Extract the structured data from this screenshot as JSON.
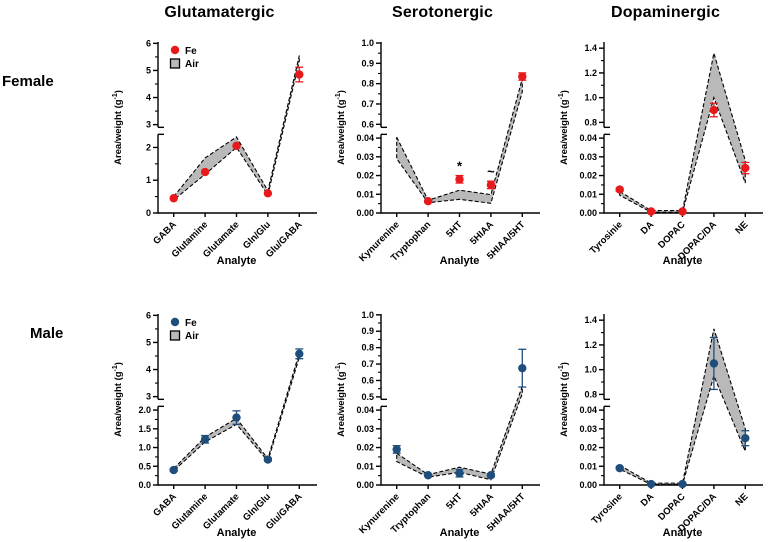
{
  "figure": {
    "column_titles": [
      "Glutamatergic",
      "Serotonergic",
      "Dopaminergic"
    ],
    "row_labels": [
      "Female",
      "Male"
    ],
    "ylabel_base": "Area/weight (g",
    "ylabel_sup": "-1",
    "ylabel_close": ")",
    "xlabel": "Analyte",
    "legend": {
      "fe": "Fe",
      "air": "Air"
    },
    "colors": {
      "female_marker": "#e8191b",
      "male_marker": "#1f4e7c",
      "air_fill": "#b9b9b9",
      "axis": "#000000",
      "background": "#ffffff"
    }
  },
  "chart_data": [
    {
      "id": "female-glutamatergic",
      "row": "Female",
      "column": "Glutamatergic",
      "type": "line-band",
      "marker_color": "female_marker",
      "show_legend": true,
      "categories": [
        "GABA",
        "Glutamine",
        "Glutamate",
        "Gln/Glu",
        "Glu/GABA"
      ],
      "fe": {
        "values": [
          0.45,
          1.25,
          2.05,
          0.6,
          4.85
        ],
        "errors": [
          0,
          0,
          0,
          0,
          0.27
        ]
      },
      "air": {
        "lo": [
          0.4,
          1.18,
          2.0,
          0.55,
          5.35
        ],
        "hi": [
          0.5,
          1.68,
          2.32,
          0.68,
          5.55
        ]
      },
      "annotations": [
        "",
        "",
        "",
        "",
        ""
      ],
      "axis": {
        "lower": {
          "min": 0,
          "max": 2.4,
          "ticks": [
            0,
            1,
            2
          ],
          "fmt": 0
        },
        "upper": {
          "min": 2.9,
          "max": 6.05,
          "ticks": [
            3,
            4,
            5,
            6
          ],
          "fmt": 0
        },
        "lower_frac": 0.46
      }
    },
    {
      "id": "female-serotonergic",
      "row": "Female",
      "column": "Serotonergic",
      "type": "line-band",
      "marker_color": "female_marker",
      "show_legend": false,
      "categories": [
        "Kynurenine",
        "Tryptophan",
        "5HT",
        "5HIAA",
        "5HIAA/5HT"
      ],
      "fe": {
        "values": [
          null,
          0.0063,
          0.018,
          0.015,
          0.835
        ],
        "errors": [
          0,
          0.0005,
          0.002,
          0.002,
          0.018
        ]
      },
      "air": {
        "lo": [
          0.029,
          0.0055,
          0.0073,
          0.0052,
          0.76
        ],
        "hi": [
          0.0405,
          0.0068,
          0.0122,
          0.0098,
          0.825
        ]
      },
      "annotations": [
        "",
        "",
        "*",
        "~",
        ""
      ],
      "axis": {
        "lower": {
          "min": 0,
          "max": 0.042,
          "ticks": [
            0,
            0.01,
            0.02,
            0.03,
            0.04
          ],
          "fmt": 2
        },
        "upper": {
          "min": 0.585,
          "max": 1.005,
          "ticks": [
            0.6,
            0.7,
            0.8,
            0.9,
            1.0
          ],
          "fmt": 1
        },
        "lower_frac": 0.46
      }
    },
    {
      "id": "female-dopaminergic",
      "row": "Female",
      "column": "Dopaminergic",
      "type": "line-band",
      "marker_color": "female_marker",
      "show_legend": false,
      "categories": [
        "Tyrosinie",
        "DA",
        "DOPAC",
        "DOPAC/DA",
        "NE"
      ],
      "fe": {
        "values": [
          0.0125,
          0.0008,
          0.0008,
          0.9,
          0.024
        ],
        "errors": [
          0.0008,
          0,
          0,
          0.055,
          0.003
        ]
      },
      "air": {
        "lo": [
          0.0095,
          0.0004,
          0.0004,
          1.0,
          0.016
        ],
        "hi": [
          0.0115,
          0.0013,
          0.0013,
          1.36,
          0.028
        ]
      },
      "annotations": [
        "",
        "",
        "",
        "",
        ""
      ],
      "axis": {
        "lower": {
          "min": 0,
          "max": 0.042,
          "ticks": [
            0,
            0.01,
            0.02,
            0.03,
            0.04
          ],
          "fmt": 2
        },
        "upper": {
          "min": 0.76,
          "max": 1.45,
          "ticks": [
            0.8,
            1.0,
            1.2,
            1.4
          ],
          "fmt": 1
        },
        "lower_frac": 0.46
      }
    },
    {
      "id": "male-glutamatergic",
      "row": "Male",
      "column": "Glutamatergic",
      "type": "line-band",
      "marker_color": "male_marker",
      "show_legend": true,
      "categories": [
        "GABA",
        "Glutamine",
        "Glutamate",
        "Gln/Glu",
        "Glu/GABA"
      ],
      "fe": {
        "values": [
          0.4,
          1.22,
          1.8,
          0.68,
          4.58
        ],
        "errors": [
          0.03,
          0.1,
          0.18,
          0.04,
          0.18
        ]
      },
      "air": {
        "lo": [
          0.38,
          1.15,
          1.62,
          0.64,
          4.45
        ],
        "hi": [
          0.44,
          1.28,
          1.78,
          0.7,
          4.62
        ]
      },
      "annotations": [
        "",
        "",
        "",
        "",
        ""
      ],
      "axis": {
        "lower": {
          "min": 0,
          "max": 2.1,
          "ticks": [
            0,
            0.5,
            1.0,
            1.5,
            2.0
          ],
          "fmt": 1
        },
        "upper": {
          "min": 2.9,
          "max": 6.05,
          "ticks": [
            3,
            4,
            5,
            6
          ],
          "fmt": 0
        },
        "lower_frac": 0.46
      }
    },
    {
      "id": "male-serotonergic",
      "row": "Male",
      "column": "Serotonergic",
      "type": "line-band",
      "marker_color": "male_marker",
      "show_legend": false,
      "categories": [
        "Kynurenine",
        "Tryptophan",
        "5HT",
        "5HIAA",
        "5HIAA/5HT"
      ],
      "fe": {
        "values": [
          0.019,
          0.0052,
          0.0063,
          0.0052,
          0.675
        ],
        "errors": [
          0.002,
          0.0005,
          0.002,
          0.0008,
          0.115
        ]
      },
      "air": {
        "lo": [
          0.0125,
          0.0042,
          0.0068,
          0.0028,
          0.52
        ],
        "hi": [
          0.017,
          0.0055,
          0.0095,
          0.0058,
          0.565
        ]
      },
      "annotations": [
        "",
        "",
        "",
        "",
        ""
      ],
      "axis": {
        "lower": {
          "min": 0,
          "max": 0.042,
          "ticks": [
            0,
            0.01,
            0.02,
            0.03,
            0.04
          ],
          "fmt": 2
        },
        "upper": {
          "min": 0.485,
          "max": 1.005,
          "ticks": [
            0.5,
            0.6,
            0.7,
            0.8,
            0.9,
            1.0
          ],
          "fmt": 1
        },
        "lower_frac": 0.46
      }
    },
    {
      "id": "male-dopaminergic",
      "row": "Male",
      "column": "Dopaminergic",
      "type": "line-band",
      "marker_color": "male_marker",
      "show_legend": false,
      "categories": [
        "Tyrosine",
        "DA",
        "DOPAC",
        "DOPAC/DA",
        "NE"
      ],
      "fe": {
        "values": [
          0.009,
          0.0005,
          0.0005,
          1.05,
          0.025
        ],
        "errors": [
          0.0006,
          0,
          0,
          0.21,
          0.004
        ]
      },
      "air": {
        "lo": [
          0.0085,
          0.0003,
          0.0003,
          0.95,
          0.018
        ],
        "hi": [
          0.0105,
          0.001,
          0.001,
          1.33,
          0.03
        ]
      },
      "annotations": [
        "",
        "",
        "",
        "",
        ""
      ],
      "axis": {
        "lower": {
          "min": 0,
          "max": 0.042,
          "ticks": [
            0,
            0.01,
            0.02,
            0.03,
            0.04
          ],
          "fmt": 2
        },
        "upper": {
          "min": 0.76,
          "max": 1.45,
          "ticks": [
            0.8,
            1.0,
            1.2,
            1.4
          ],
          "fmt": 1
        },
        "lower_frac": 0.46
      }
    }
  ]
}
